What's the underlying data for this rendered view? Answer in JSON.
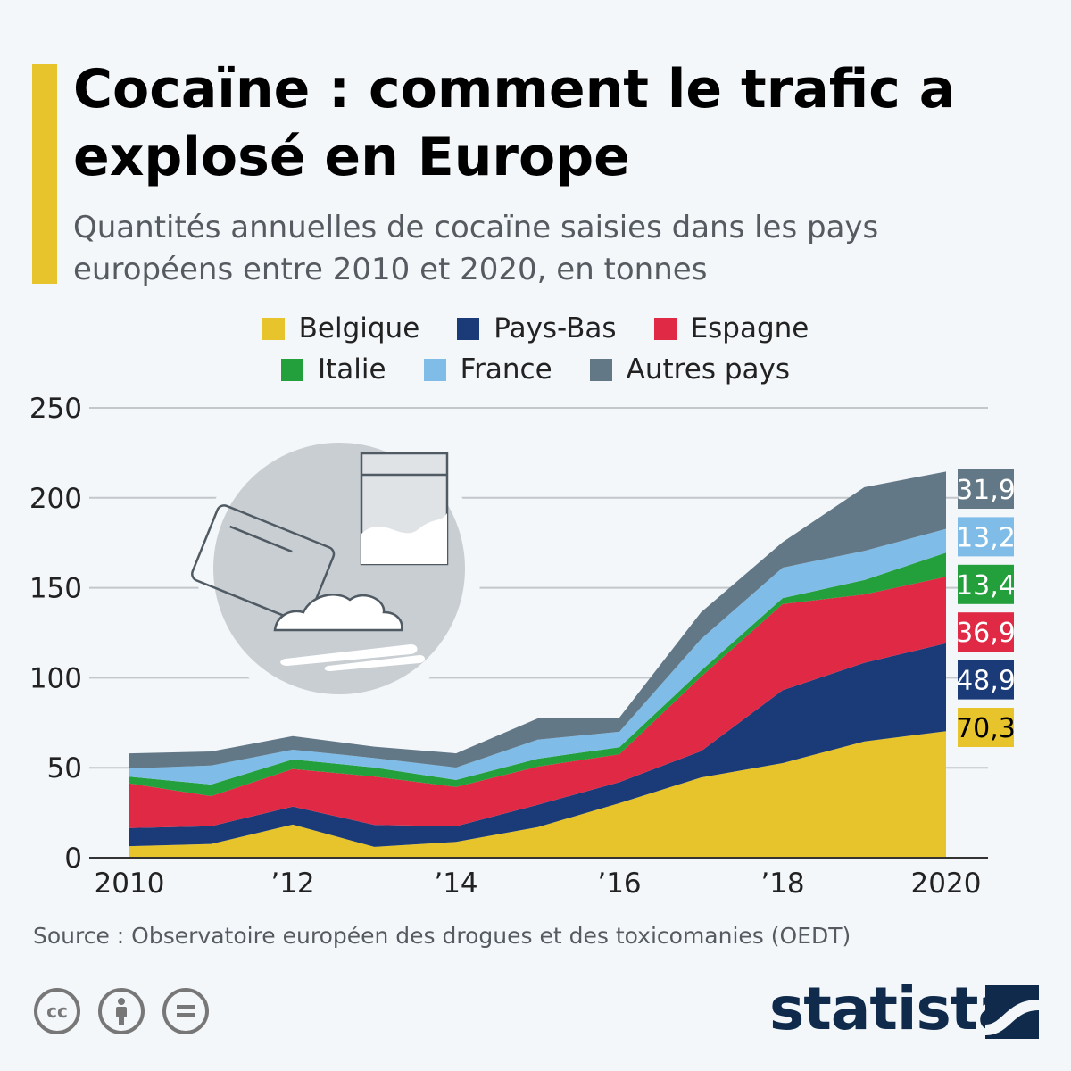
{
  "title": "Cocaïne : comment le trafic a explosé en Europe",
  "subtitle": "Quantités annuelles de cocaïne saisies dans les pays européens entre 2010 et 2020, en tonnes",
  "source": "Source : Observatoire européen des drogues et des toxicomanies (OEDT)",
  "logo": "statista",
  "license_icons": [
    "cc-icon",
    "attribution-icon",
    "no-derivatives-icon"
  ],
  "chart_data": {
    "type": "area",
    "stacked": true,
    "x": [
      2010,
      2011,
      2012,
      2013,
      2014,
      2015,
      2016,
      2017,
      2018,
      2019,
      2020
    ],
    "x_tick_labels": {
      "2010": "2010",
      "2012": "’12",
      "2014": "’14",
      "2016": "’16",
      "2018": "’18",
      "2020": "2020"
    },
    "ylim": [
      0,
      250
    ],
    "y_ticks": [
      0,
      50,
      100,
      150,
      200,
      250
    ],
    "grid": true,
    "legend_position": "top",
    "series": [
      {
        "name": "Belgique",
        "color": "#e8c42c",
        "values": [
          6.4,
          7.6,
          18.4,
          6.0,
          8.8,
          17.0,
          30.3,
          44.6,
          52.6,
          64.6,
          70.3
        ],
        "end_label": "70,3",
        "label_text_color": "#000000"
      },
      {
        "name": "Pays-Bas",
        "color": "#1a3b78",
        "values": [
          10.1,
          9.9,
          10.0,
          12.2,
          8.7,
          12.4,
          11.7,
          14.6,
          40.5,
          43.7,
          48.9
        ],
        "end_label": "48,9",
        "label_text_color": "#ffffff"
      },
      {
        "name": "Espagne",
        "color": "#e02a45",
        "values": [
          24.8,
          16.7,
          20.9,
          26.9,
          21.8,
          21.2,
          15.5,
          41.4,
          47.9,
          38.0,
          36.9
        ],
        "end_label": "36,9",
        "label_text_color": "#ffffff"
      },
      {
        "name": "Italie",
        "color": "#23a03c",
        "values": [
          3.7,
          6.5,
          5.3,
          5.0,
          3.9,
          4.4,
          3.9,
          3.4,
          3.3,
          8.0,
          13.4
        ],
        "end_label": "13,4",
        "label_text_color": "#ffffff"
      },
      {
        "name": "France",
        "color": "#7fbde8",
        "values": [
          4.6,
          10.5,
          5.4,
          5.3,
          6.9,
          10.6,
          8.6,
          17.5,
          16.9,
          16.2,
          13.2
        ],
        "end_label": "13,2",
        "label_text_color": "#ffffff"
      },
      {
        "name": "Autres pays",
        "color": "#637887",
        "values": [
          8.4,
          7.8,
          7.6,
          6.3,
          7.9,
          11.8,
          7.9,
          14.9,
          14.2,
          35.4,
          31.9
        ],
        "end_label": "31,9",
        "label_text_color": "#ffffff"
      }
    ]
  }
}
